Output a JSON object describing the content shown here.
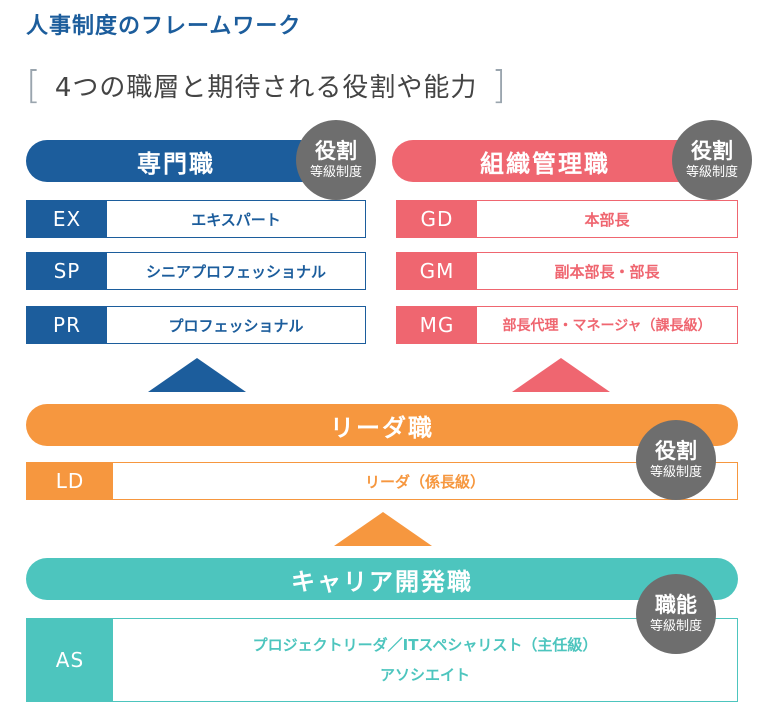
{
  "header": {
    "title": "人事制度のフレームワーク",
    "subtitle": "4つの職層と期待される役割や能力",
    "bracket_open": "[",
    "bracket_close": "]"
  },
  "specialist": {
    "label": "専門職",
    "badge_top": "役割",
    "badge_bottom": "等級制度",
    "rows": [
      {
        "code": "EX",
        "desc": "エキスパート"
      },
      {
        "code": "SP",
        "desc": "シニアプロフェッショナル"
      },
      {
        "code": "PR",
        "desc": "プロフェッショナル"
      }
    ]
  },
  "management": {
    "label": "組織管理職",
    "badge_top": "役割",
    "badge_bottom": "等級制度",
    "rows": [
      {
        "code": "GD",
        "desc": "本部長"
      },
      {
        "code": "GM",
        "desc": "副本部長・部長"
      },
      {
        "code": "MG",
        "desc": "部長代理・マネージャ（課長級）"
      }
    ]
  },
  "leader": {
    "label": "リーダ職",
    "badge_top": "役割",
    "badge_bottom": "等級制度",
    "code": "LD",
    "desc": "リーダ（係長級）"
  },
  "career": {
    "label": "キャリア開発職",
    "badge_top": "職能",
    "badge_bottom": "等級制度",
    "code": "AS",
    "desc_line1": "プロジェクトリーダ／ITスペシャリスト（主任級）",
    "desc_line2": "アソシエイト"
  },
  "colors": {
    "blue": "#1c5d9c",
    "red": "#ef6670",
    "orange": "#f6973f",
    "teal": "#4dc5be",
    "badge": "#6e6e6e"
  }
}
